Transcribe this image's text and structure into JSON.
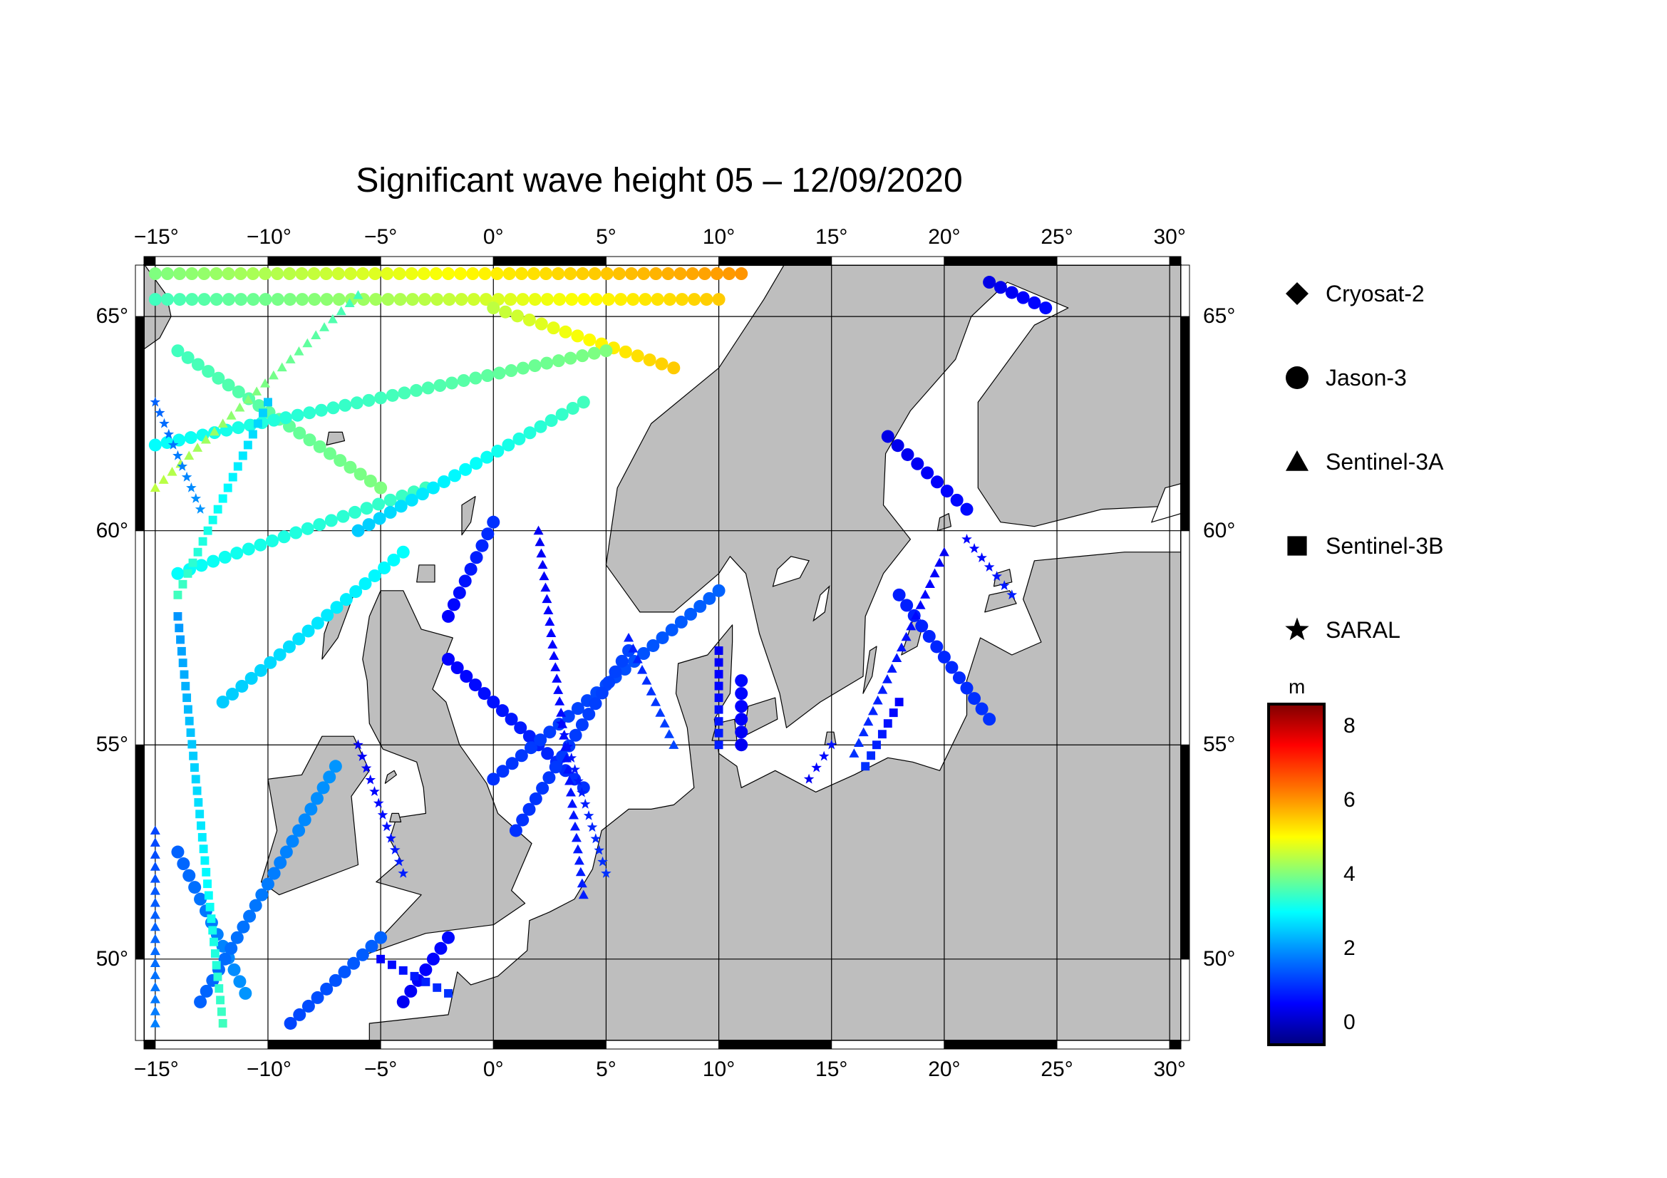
{
  "title": "Significant wave height 05 – 12/09/2020",
  "map": {
    "lon_range": [
      -15.5,
      30.5
    ],
    "lat_range": [
      48.1,
      66.2
    ],
    "lon_ticks": [
      "−15°",
      "−10°",
      "−5°",
      "0°",
      "5°",
      "10°",
      "15°",
      "20°",
      "25°",
      "30°"
    ],
    "lat_ticks": [
      "50°",
      "55°",
      "60°",
      "65°"
    ],
    "land_color": "#bebebe",
    "sea_color": "#ffffff"
  },
  "legend": [
    {
      "name": "Cryosat-2",
      "symbol": "diamond"
    },
    {
      "name": "Jason-3",
      "symbol": "circle"
    },
    {
      "name": "Sentinel-3A",
      "symbol": "triangle"
    },
    {
      "name": "Sentinel-3B",
      "symbol": "square"
    },
    {
      "name": "SARAL",
      "symbol": "star"
    }
  ],
  "colorbar": {
    "unit": "m",
    "min": -0.6,
    "max": 8.6,
    "ticks": [
      "0",
      "2",
      "4",
      "6",
      "8"
    ],
    "colors": [
      "#00007f",
      "#0000ff",
      "#007fff",
      "#00ffff",
      "#7fff7f",
      "#ffff00",
      "#ff7f00",
      "#ff0000",
      "#7f0000"
    ]
  },
  "chart_data": {
    "type": "scatter",
    "title": "Significant wave height 05 – 12/09/2020",
    "xlim": [
      -15.5,
      30.5
    ],
    "ylim": [
      48.1,
      66.2
    ],
    "tracks": [
      {
        "satellite": "Jason-3",
        "from": [
          -15,
          66.0
        ],
        "to": [
          11,
          66.0
        ],
        "hs": [
          4.0,
          6.0
        ]
      },
      {
        "satellite": "Jason-3",
        "from": [
          -15,
          65.4
        ],
        "to": [
          10,
          65.4
        ],
        "hs": [
          3.5,
          5.5
        ]
      },
      {
        "satellite": "Jason-3",
        "from": [
          -14,
          64.2
        ],
        "to": [
          -5,
          61.0
        ],
        "hs": [
          3.5,
          4.0
        ]
      },
      {
        "satellite": "Jason-3",
        "from": [
          0,
          65.2
        ],
        "to": [
          8,
          63.8
        ],
        "hs": [
          4.5,
          5.5
        ]
      },
      {
        "satellite": "Jason-3",
        "from": [
          -15,
          62.0
        ],
        "to": [
          5,
          64.2
        ],
        "hs": [
          3.0,
          4.0
        ]
      },
      {
        "satellite": "Jason-3",
        "from": [
          -14,
          59.0
        ],
        "to": [
          -3,
          61.0
        ],
        "hs": [
          3.0,
          3.5
        ]
      },
      {
        "satellite": "Jason-3",
        "from": [
          -6,
          60.0
        ],
        "to": [
          4,
          63.0
        ],
        "hs": [
          2.5,
          3.5
        ]
      },
      {
        "satellite": "Jason-3",
        "from": [
          -12,
          56.0
        ],
        "to": [
          -4,
          59.5
        ],
        "hs": [
          2.5,
          3.0
        ]
      },
      {
        "satellite": "Jason-3",
        "from": [
          -14,
          52.5
        ],
        "to": [
          -11,
          49.2
        ],
        "hs": [
          1.5,
          2.0
        ]
      },
      {
        "satellite": "Jason-3",
        "from": [
          -13,
          49.0
        ],
        "to": [
          -7,
          54.5
        ],
        "hs": [
          1.5,
          2.0
        ]
      },
      {
        "satellite": "Jason-3",
        "from": [
          -9,
          48.5
        ],
        "to": [
          -5,
          50.5
        ],
        "hs": [
          1.2,
          1.5
        ]
      },
      {
        "satellite": "Jason-3",
        "from": [
          -2,
          58.0
        ],
        "to": [
          0,
          60.2
        ],
        "hs": [
          0.5,
          1.0
        ]
      },
      {
        "satellite": "Jason-3",
        "from": [
          -2,
          57.0
        ],
        "to": [
          4,
          54.0
        ],
        "hs": [
          0.5,
          1.0
        ]
      },
      {
        "satellite": "Jason-3",
        "from": [
          0,
          54.2
        ],
        "to": [
          10,
          58.6
        ],
        "hs": [
          1.0,
          1.5
        ]
      },
      {
        "satellite": "Jason-3",
        "from": [
          1,
          53.0
        ],
        "to": [
          6,
          57.2
        ],
        "hs": [
          1.0,
          1.2
        ]
      },
      {
        "satellite": "Jason-3",
        "from": [
          22,
          65.8
        ],
        "to": [
          24.5,
          65.2
        ],
        "hs": [
          0.3,
          0.6
        ]
      },
      {
        "satellite": "Jason-3",
        "from": [
          17.5,
          62.2
        ],
        "to": [
          21,
          60.5
        ],
        "hs": [
          0.3,
          0.6
        ]
      },
      {
        "satellite": "Jason-3",
        "from": [
          18,
          58.5
        ],
        "to": [
          22,
          55.6
        ],
        "hs": [
          0.8,
          1.0
        ]
      },
      {
        "satellite": "Jason-3",
        "from": [
          11,
          55.0
        ],
        "to": [
          11,
          56.5
        ],
        "hs": [
          0.4,
          0.6
        ]
      },
      {
        "satellite": "Jason-3",
        "from": [
          -4,
          49.0
        ],
        "to": [
          -2,
          50.5
        ],
        "hs": [
          0.4,
          0.6
        ]
      },
      {
        "satellite": "Sentinel-3A",
        "from": [
          -6,
          65.5
        ],
        "to": [
          -15,
          61.0
        ],
        "hs": [
          3.5,
          4.5
        ]
      },
      {
        "satellite": "Sentinel-3A",
        "from": [
          2,
          60.0
        ],
        "to": [
          4,
          51.5
        ],
        "hs": [
          0.4,
          0.8
        ]
      },
      {
        "satellite": "Sentinel-3A",
        "from": [
          6,
          57.5
        ],
        "to": [
          8,
          55.0
        ],
        "hs": [
          0.8,
          1.2
        ]
      },
      {
        "satellite": "Sentinel-3A",
        "from": [
          -15,
          53.0
        ],
        "to": [
          -15,
          48.5
        ],
        "hs": [
          1.2,
          1.8
        ]
      },
      {
        "satellite": "Sentinel-3A",
        "from": [
          20,
          59.5
        ],
        "to": [
          16,
          54.8
        ],
        "hs": [
          0.4,
          1.0
        ]
      },
      {
        "satellite": "Sentinel-3B",
        "from": [
          -14,
          58.0
        ],
        "to": [
          -12,
          48.5
        ],
        "hs": [
          2.0,
          3.5
        ]
      },
      {
        "satellite": "Sentinel-3B",
        "from": [
          -10,
          63.0
        ],
        "to": [
          -14,
          58.5
        ],
        "hs": [
          2.5,
          3.5
        ]
      },
      {
        "satellite": "Sentinel-3B",
        "from": [
          10,
          57.2
        ],
        "to": [
          10,
          55.0
        ],
        "hs": [
          0.4,
          0.8
        ]
      },
      {
        "satellite": "Sentinel-3B",
        "from": [
          18,
          56.0
        ],
        "to": [
          16.5,
          54.5
        ],
        "hs": [
          0.5,
          1.0
        ]
      },
      {
        "satellite": "Sentinel-3B",
        "from": [
          -5,
          50.0
        ],
        "to": [
          -2,
          49.2
        ],
        "hs": [
          0.5,
          1.0
        ]
      },
      {
        "satellite": "SARAL",
        "from": [
          -15,
          63.0
        ],
        "to": [
          -13,
          60.5
        ],
        "hs": [
          1.5,
          2.0
        ]
      },
      {
        "satellite": "SARAL",
        "from": [
          -6,
          55.0
        ],
        "to": [
          -4,
          52.0
        ],
        "hs": [
          0.4,
          0.8
        ]
      },
      {
        "satellite": "SARAL",
        "from": [
          3,
          55.5
        ],
        "to": [
          5,
          52.0
        ],
        "hs": [
          0.6,
          1.0
        ]
      },
      {
        "satellite": "SARAL",
        "from": [
          14,
          54.2
        ],
        "to": [
          15,
          55.0
        ],
        "hs": [
          0.4,
          0.7
        ]
      },
      {
        "satellite": "SARAL",
        "from": [
          21,
          59.8
        ],
        "to": [
          23,
          58.5
        ],
        "hs": [
          0.5,
          0.8
        ]
      }
    ]
  }
}
